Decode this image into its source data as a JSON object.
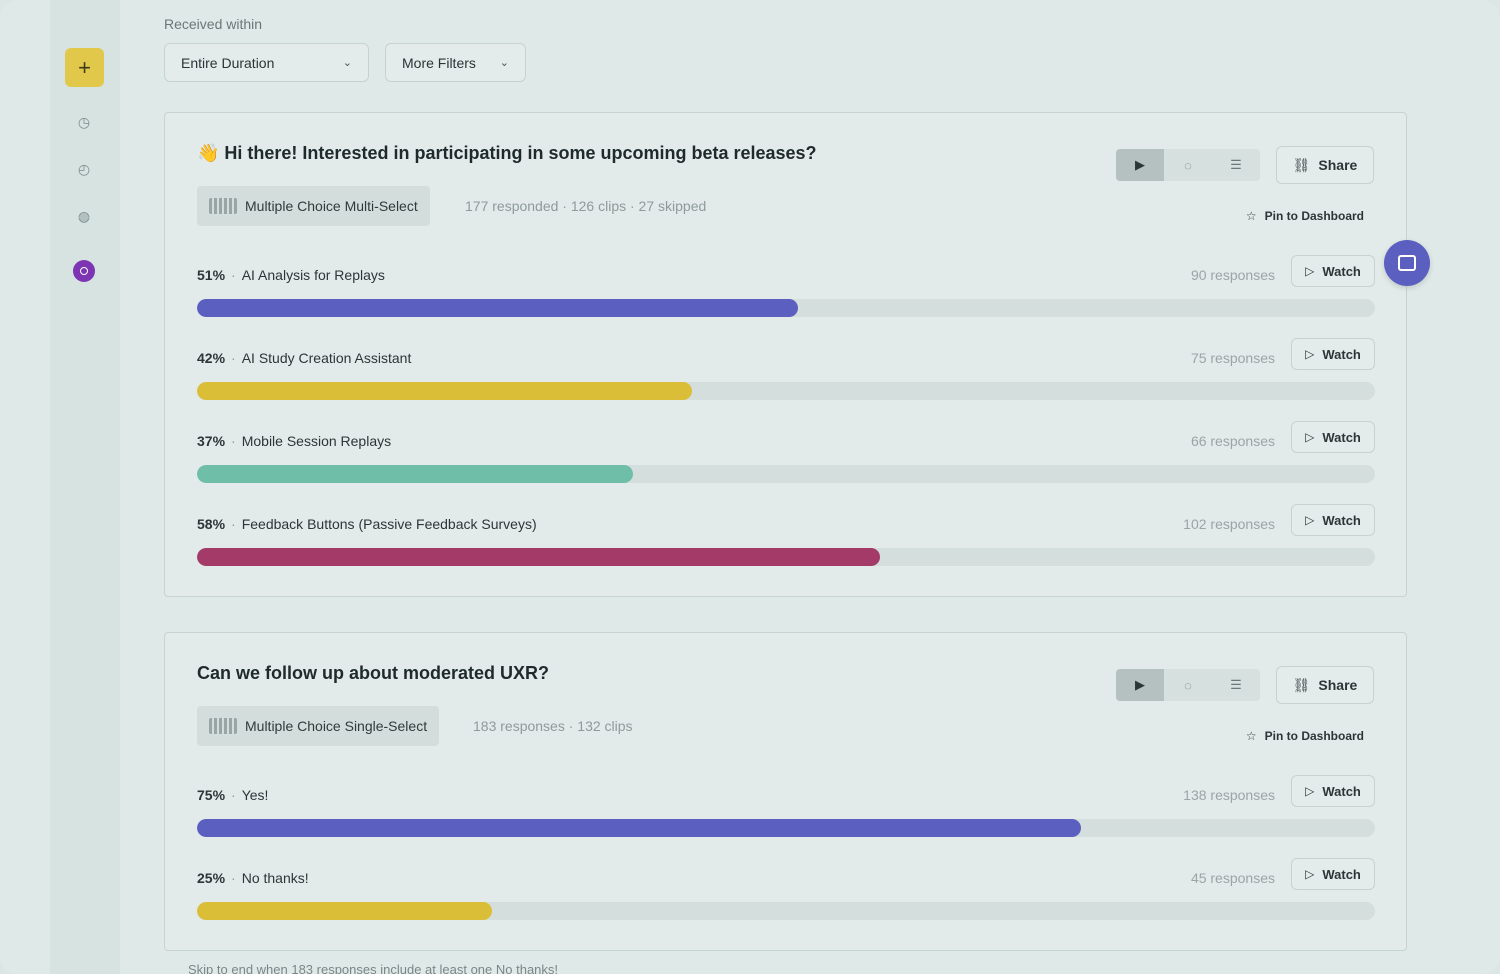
{
  "sidebar": {
    "add_label": "+",
    "icons": [
      "clock-icon",
      "history-icon",
      "globe-icon",
      "avatar"
    ]
  },
  "filters": {
    "label": "Received within",
    "duration": "Entire Duration",
    "more": "More Filters"
  },
  "questions": [
    {
      "title": "👋 Hi there! Interested in participating in some upcoming beta releases?",
      "type": "Multiple Choice Multi-Select",
      "meta": "177 responded · 126 clips · 27 skipped",
      "share": "Share",
      "pin": "Pin to Dashboard",
      "options": [
        {
          "pct": "51%",
          "label": "AI Analysis for Replays",
          "count": "90 responses",
          "fraction": 0.51,
          "color": "#5b5fc0",
          "watch": "Watch"
        },
        {
          "pct": "42%",
          "label": "AI Study Creation Assistant",
          "count": "75 responses",
          "fraction": 0.42,
          "color": "#dbbe37",
          "watch": "Watch"
        },
        {
          "pct": "37%",
          "label": "Mobile Session Replays",
          "count": "66 responses",
          "fraction": 0.37,
          "color": "#6fbfa8",
          "watch": "Watch"
        },
        {
          "pct": "58%",
          "label": "Feedback Buttons (Passive Feedback Surveys)",
          "count": "102 responses",
          "fraction": 0.58,
          "color": "#a33a67",
          "watch": "Watch"
        }
      ]
    },
    {
      "title": "Can we follow up about moderated UXR?",
      "type": "Multiple Choice Single-Select",
      "meta": "183 responses · 132 clips",
      "share": "Share",
      "pin": "Pin to Dashboard",
      "options": [
        {
          "pct": "75%",
          "label": "Yes!",
          "count": "138 responses",
          "fraction": 0.75,
          "color": "#5b5fc0",
          "watch": "Watch"
        },
        {
          "pct": "25%",
          "label": "No thanks!",
          "count": "45 responses",
          "fraction": 0.25,
          "color": "#dbbe37",
          "watch": "Watch"
        }
      ]
    }
  ],
  "footer": "Skip to end when 183 responses include at least one No thanks!"
}
